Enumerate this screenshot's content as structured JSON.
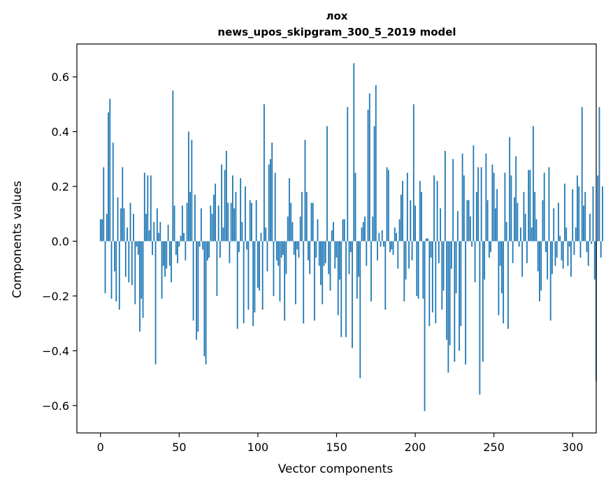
{
  "chart_data": {
    "type": "bar",
    "title": "лох",
    "subtitle": "news_upos_skipgram_300_5_2019 model",
    "xlabel": "Vector components",
    "ylabel": "Components values",
    "xlim": [
      -15,
      315
    ],
    "ylim": [
      -0.7,
      0.72
    ],
    "xticks": [
      0,
      50,
      100,
      150,
      200,
      250,
      300
    ],
    "yticks": [
      -0.6,
      -0.4,
      -0.2,
      0.0,
      0.2,
      0.4,
      0.6
    ],
    "xtick_labels": [
      "0",
      "50",
      "100",
      "150",
      "200",
      "250",
      "300"
    ],
    "ytick_labels": [
      "−0.6",
      "−0.4",
      "−0.2",
      "0.0",
      "0.2",
      "0.4",
      "0.6"
    ],
    "grid": false,
    "color": "#1f77b4",
    "values": [
      0.08,
      0.08,
      0.27,
      -0.19,
      0.1,
      0.47,
      0.52,
      -0.21,
      0.36,
      -0.11,
      -0.22,
      0.16,
      -0.25,
      0.12,
      0.27,
      0.12,
      -0.13,
      0.05,
      -0.15,
      0.14,
      -0.16,
      0.1,
      -0.23,
      -0.02,
      -0.05,
      -0.33,
      -0.21,
      -0.28,
      0.25,
      0.1,
      0.24,
      0.04,
      0.24,
      -0.05,
      0.07,
      -0.45,
      0.12,
      0.03,
      0.07,
      -0.21,
      -0.09,
      -0.13,
      -0.1,
      0.06,
      -0.09,
      -0.15,
      0.55,
      0.13,
      -0.05,
      -0.08,
      -0.02,
      0.02,
      0.13,
      0.03,
      -0.07,
      0.14,
      0.4,
      0.18,
      0.37,
      -0.29,
      0.17,
      -0.36,
      -0.33,
      -0.02,
      0.12,
      -0.03,
      -0.42,
      -0.45,
      -0.07,
      -0.06,
      0.13,
      0.1,
      0.17,
      0.21,
      -0.2,
      0.13,
      -0.06,
      0.28,
      0.05,
      0.26,
      0.33,
      0.14,
      -0.08,
      0.14,
      0.24,
      0.12,
      0.18,
      -0.32,
      -0.04,
      0.23,
      0.07,
      -0.3,
      0.2,
      -0.03,
      -0.25,
      0.15,
      0.14,
      -0.31,
      -0.26,
      0.15,
      -0.17,
      -0.18,
      0.03,
      -0.25,
      0.5,
      0.05,
      -0.11,
      0.28,
      0.3,
      0.36,
      -0.2,
      0.25,
      -0.07,
      -0.09,
      -0.22,
      -0.06,
      -0.05,
      -0.29,
      -0.12,
      0.09,
      0.23,
      0.14,
      0.07,
      -0.05,
      -0.23,
      -0.03,
      -0.06,
      0.09,
      0.18,
      -0.3,
      0.37,
      0.18,
      -0.07,
      -0.12,
      0.14,
      0.14,
      -0.29,
      -0.06,
      0.08,
      -0.09,
      -0.16,
      -0.23,
      -0.09,
      -0.08,
      0.42,
      -0.12,
      -0.18,
      0.04,
      0.07,
      -0.1,
      -0.06,
      -0.27,
      -0.14,
      -0.35,
      0.08,
      0.08,
      -0.35,
      0.49,
      -0.12,
      -0.04,
      -0.39,
      0.65,
      0.25,
      -0.21,
      -0.13,
      -0.5,
      0.05,
      0.07,
      0.09,
      -0.09,
      0.48,
      0.54,
      -0.22,
      0.09,
      0.42,
      0.57,
      -0.07,
      0.03,
      -0.02,
      0.04,
      -0.02,
      -0.25,
      0.27,
      0.26,
      -0.04,
      -0.03,
      -0.05,
      0.05,
      0.03,
      -0.1,
      0.08,
      0.17,
      0.22,
      -0.22,
      -0.14,
      0.25,
      -0.1,
      0.15,
      -0.07,
      0.5,
      0.13,
      -0.2,
      -0.21,
      0.22,
      0.18,
      -0.21,
      -0.62,
      0.01,
      0.01,
      -0.31,
      -0.06,
      -0.26,
      0.24,
      -0.3,
      0.22,
      -0.08,
      0.12,
      -0.25,
      -0.18,
      0.33,
      -0.36,
      -0.48,
      -0.38,
      -0.1,
      0.3,
      -0.44,
      -0.19,
      0.11,
      -0.4,
      -0.31,
      0.32,
      0.24,
      -0.45,
      0.15,
      0.15,
      0.09,
      -0.02,
      0.35,
      -0.15,
      0.18,
      0.27,
      -0.56,
      0.27,
      -0.44,
      -0.14,
      0.32,
      0.15,
      -0.06,
      -0.04,
      0.28,
      0.25,
      0.12,
      0.19,
      -0.27,
      -0.09,
      -0.19,
      -0.3,
      0.25,
      0.07,
      -0.32,
      0.38,
      0.24,
      -0.08,
      0.16,
      0.31,
      0.14,
      -0.02,
      0.05,
      -0.13,
      0.18,
      0.1,
      -0.08,
      0.26,
      0.26,
      0.05,
      0.42,
      0.18,
      0.08,
      -0.11,
      -0.22,
      -0.18,
      0.15,
      0.25,
      -0.04,
      -0.14,
      0.27,
      -0.29,
      -0.12,
      0.12,
      -0.09,
      -0.06,
      0.14,
      0.02,
      -0.07,
      -0.1,
      0.21,
      0.05,
      -0.09,
      -0.02,
      -0.13,
      0.19,
      -0.05,
      0.05,
      0.24,
      0.2,
      -0.06,
      0.49,
      0.13,
      0.18,
      -0.04,
      -0.09,
      0.1,
      -0.01,
      0.2,
      -0.14,
      -0.51,
      0.24,
      0.49,
      -0.06,
      0.2
    ]
  }
}
